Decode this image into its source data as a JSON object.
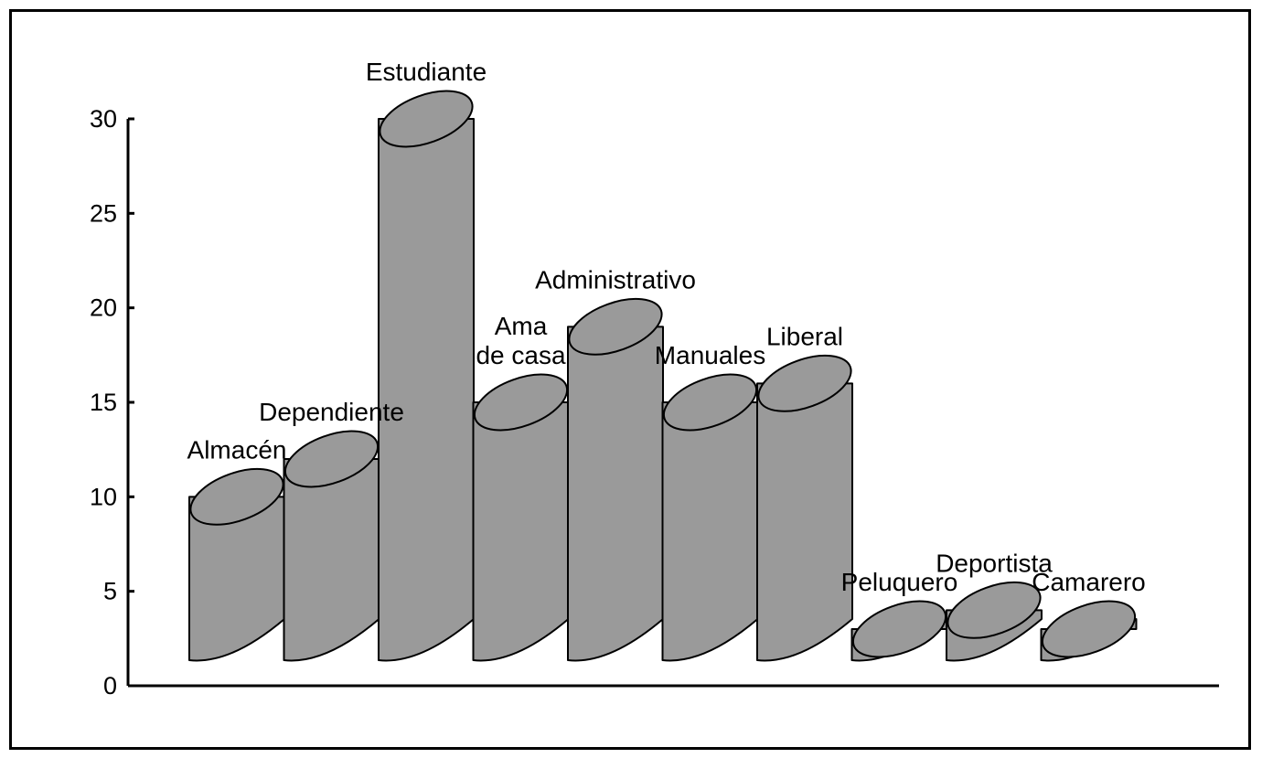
{
  "chart_data": {
    "type": "bar",
    "style": "3d-cylinder",
    "categories": [
      "Almacén",
      "Dependiente",
      "Estudiante",
      "Ama de casa",
      "Administrativo",
      "Manuales",
      "Liberal",
      "Peluquero",
      "Deportista",
      "Camarero"
    ],
    "label_lines": [
      [
        "Almacén"
      ],
      [
        "Dependiente"
      ],
      [
        "Estudiante"
      ],
      [
        "Ama",
        "de casa"
      ],
      [
        "Administrativo"
      ],
      [
        "Manuales"
      ],
      [
        "Liberal"
      ],
      [
        "Peluquero"
      ],
      [
        "Deportista"
      ],
      [
        "Camarero"
      ]
    ],
    "values": [
      10,
      12,
      30,
      15,
      19,
      15,
      16,
      3,
      4,
      3
    ],
    "ylim": [
      0,
      30
    ],
    "yticks": [
      0,
      5,
      10,
      15,
      20,
      25,
      30
    ],
    "ytick_labels": [
      "0",
      "5",
      "10",
      "15",
      "20",
      "25",
      "30"
    ],
    "grid": false,
    "title": "",
    "xlabel": "",
    "ylabel": "",
    "colors": {
      "bar_fill": "#9a9a9a",
      "outline": "#000000",
      "background": "#ffffff"
    }
  }
}
